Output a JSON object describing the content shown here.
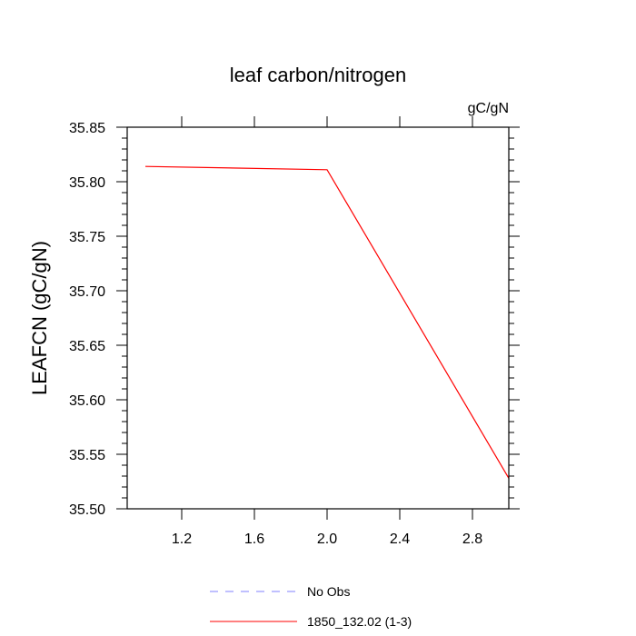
{
  "chart_data": {
    "type": "line",
    "title": "leaf carbon/nitrogen",
    "units_label": "gC/gN",
    "ylabel": "LEAFCN  (gC/gN)",
    "xlabel": "",
    "xlim": [
      0.9,
      3.0
    ],
    "ylim": [
      35.5,
      35.85
    ],
    "x_ticks": [
      "1.2",
      "1.6",
      "2.0",
      "2.4",
      "2.8"
    ],
    "y_ticks": [
      "35.50",
      "35.55",
      "35.60",
      "35.65",
      "35.70",
      "35.75",
      "35.80",
      "35.85"
    ],
    "series": [
      {
        "name": "1850_132.02 (1-3)",
        "color": "#ff0000",
        "dash": "solid",
        "x": [
          1.0,
          2.0,
          3.0
        ],
        "y": [
          35.814,
          35.811,
          35.528
        ]
      }
    ],
    "legend": [
      {
        "label": "No Obs",
        "color": "#8080ff",
        "dash": "dashed"
      },
      {
        "label": "1850_132.02 (1-3)",
        "color": "#ff0000",
        "dash": "solid"
      }
    ],
    "legend_position": "bottom",
    "grid": false
  }
}
